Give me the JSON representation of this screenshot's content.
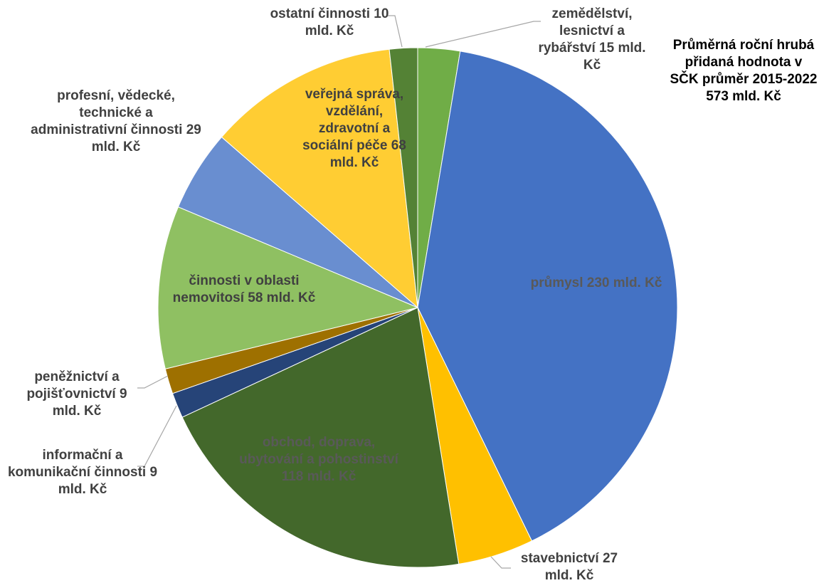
{
  "chart_data": {
    "type": "pie",
    "title": "Průměrná roční hrubá přidaná hodnota v SČK průměr 2015-2022 573 mld. Kč",
    "categories": [
      "zemědělství, lesnictví a rybářství",
      "průmysl",
      "stavebnictví",
      "obchod, doprava, ubytování a pohostinství",
      "informační a komunikační činnosti",
      "peněžnictví a pojišťovnictví",
      "činnosti v oblasti nemovitosí",
      "profesní, vědecké, technické a administrativní činnosti",
      "veřejná správa, vzdělání, zdravotní a sociální péče",
      "ostatní činnosti"
    ],
    "values": [
      15,
      230,
      27,
      118,
      9,
      9,
      58,
      29,
      68,
      10
    ],
    "value_labels": [
      "15 mld. Kč",
      "230 mld. Kč",
      "27 mld. Kč",
      "118 mld. Kč",
      "9 mld. Kč",
      "9 mld. Kč",
      "58 mld. Kč",
      "29 mld. Kč",
      "68 mld. Kč",
      "10 mld. Kč"
    ],
    "colors": [
      "#70ad47",
      "#4472c4",
      "#ffc000",
      "#43682b",
      "#264478",
      "#9e7000",
      "#8fc062",
      "#698ed0",
      "#ffcd33",
      "#548235"
    ]
  }
}
